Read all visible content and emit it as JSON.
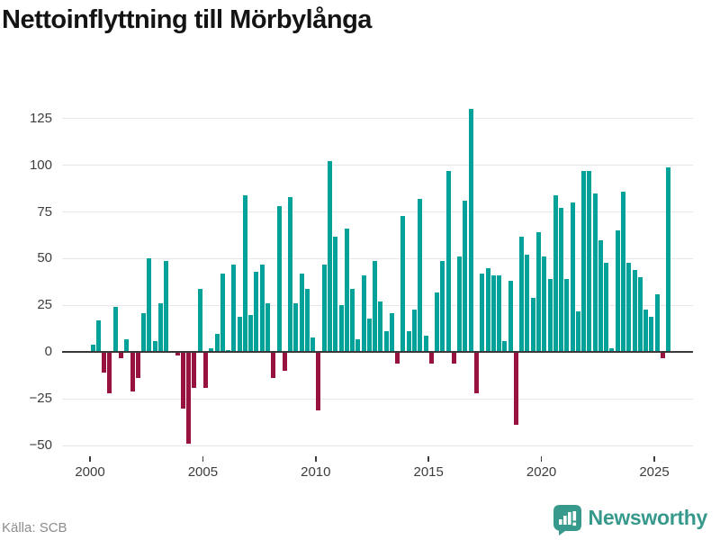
{
  "header": {
    "title": "Nettoinflyttning till Mörbylånga"
  },
  "footer": {
    "source": "Källa: SCB",
    "logo_text": "Newsworthy"
  },
  "colors": {
    "positive_bar": "#00a29a",
    "negative_bar": "#97123f",
    "gridline": "#e7e7e7",
    "axis_line": "#383838",
    "tick_label": "#3d3d3d",
    "source_text": "#8d8d8d",
    "logo_teal": "#37998b"
  },
  "chart_data": {
    "type": "bar",
    "title": "Nettoinflyttning till Mörbylånga",
    "xlabel": "",
    "ylabel": "",
    "frequency": "quarterly",
    "start_period": "2000-Q1",
    "end_period": "2025-Q3",
    "grid": true,
    "legend": "none",
    "ylim": [
      -55.7,
      135.5
    ],
    "y_ticks": [
      {
        "value": 125,
        "label": "125"
      },
      {
        "value": 100,
        "label": "100"
      },
      {
        "value": 75,
        "label": "75"
      },
      {
        "value": 50,
        "label": "50"
      },
      {
        "value": 25,
        "label": "25"
      },
      {
        "value": 0,
        "label": "0"
      },
      {
        "value": -25,
        "label": "−25"
      },
      {
        "value": -50,
        "label": "−50"
      }
    ],
    "x_ticks": [
      {
        "year": 2000,
        "label": "2000"
      },
      {
        "year": 2005,
        "label": "2005"
      },
      {
        "year": 2010,
        "label": "2010"
      },
      {
        "year": 2015,
        "label": "2015"
      },
      {
        "year": 2020,
        "label": "2020"
      },
      {
        "year": 2025,
        "label": "2025"
      }
    ],
    "values": [
      4,
      17,
      -11,
      -22,
      24,
      -3,
      7,
      -21,
      -14,
      21,
      50,
      6,
      26,
      49,
      0,
      -2,
      -30,
      -49,
      -19,
      34,
      -19,
      2,
      10,
      42,
      1,
      47,
      19,
      84,
      20,
      43,
      47,
      26,
      -14,
      78,
      -10,
      83,
      26,
      42,
      34,
      8,
      -31,
      47,
      102,
      62,
      25,
      66,
      34,
      7,
      41,
      18,
      49,
      27,
      11,
      21,
      -6,
      73,
      11,
      23,
      82,
      9,
      -6,
      32,
      49,
      97,
      -6,
      51,
      81,
      130,
      -22,
      42,
      45,
      41,
      41,
      6,
      38,
      -39,
      62,
      52,
      29,
      64,
      51,
      39,
      84,
      77,
      39,
      80,
      22,
      97,
      97,
      85,
      60,
      48,
      2,
      65,
      86,
      48,
      44,
      40,
      23,
      19,
      31,
      -3,
      99
    ]
  }
}
